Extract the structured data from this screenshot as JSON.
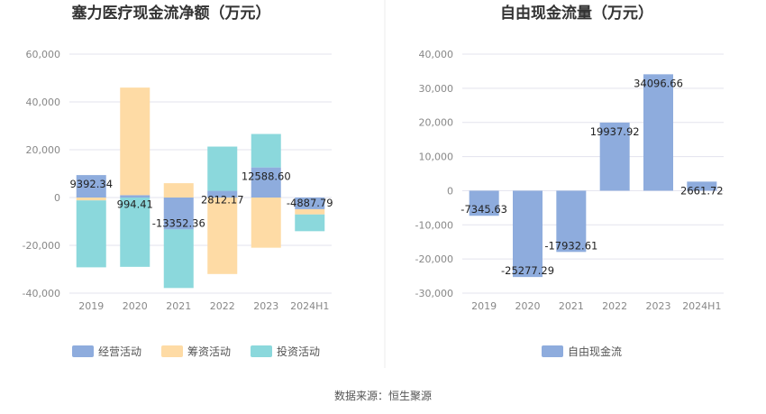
{
  "source_label": "数据来源：恒生聚源",
  "chart_data": [
    {
      "type": "bar",
      "stacked": true,
      "title": "塞力医疗现金流净额（万元）",
      "categories": [
        "2019",
        "2020",
        "2021",
        "2022",
        "2023",
        "2024H1"
      ],
      "yticks": [
        "60,000",
        "40,000",
        "20,000",
        "0",
        "-20,000",
        "-40,000"
      ],
      "ylim": [
        -40000,
        60000
      ],
      "grid": true,
      "legend_position": "bottom-center",
      "series": [
        {
          "name": "经营活动",
          "color": "#8eacdd",
          "values": [
            9392.34,
            994.41,
            -13352.36,
            2812.17,
            12588.6,
            -4887.79
          ],
          "labels": [
            "9392.34",
            "994.41",
            "-13352.36",
            "2812.17",
            "12588.60",
            "-4887.79"
          ]
        },
        {
          "name": "筹资活动",
          "color": "#fedba5",
          "values": [
            -1200,
            45000,
            6000,
            -32000,
            -21000,
            -2200
          ]
        },
        {
          "name": "投资活动",
          "color": "#8bd8dc",
          "values": [
            -28000,
            -29000,
            -24500,
            18500,
            14000,
            -7000
          ]
        }
      ]
    },
    {
      "type": "bar",
      "title": "自由现金流量（万元）",
      "categories": [
        "2019",
        "2020",
        "2021",
        "2022",
        "2023",
        "2024H1"
      ],
      "yticks": [
        "40,000",
        "30,000",
        "20,000",
        "10,000",
        "0",
        "-10,000",
        "-20,000",
        "-30,000"
      ],
      "ylim": [
        -30000,
        40000
      ],
      "grid": true,
      "legend_position": "bottom-center",
      "series": [
        {
          "name": "自由现金流",
          "color": "#8eacdd",
          "values": [
            -7345.63,
            -25277.29,
            -17932.61,
            19937.92,
            34096.66,
            2661.72
          ],
          "labels": [
            "-7345.63",
            "-25277.29",
            "-17932.61",
            "19937.92",
            "34096.66",
            "2661.72"
          ]
        }
      ]
    }
  ]
}
